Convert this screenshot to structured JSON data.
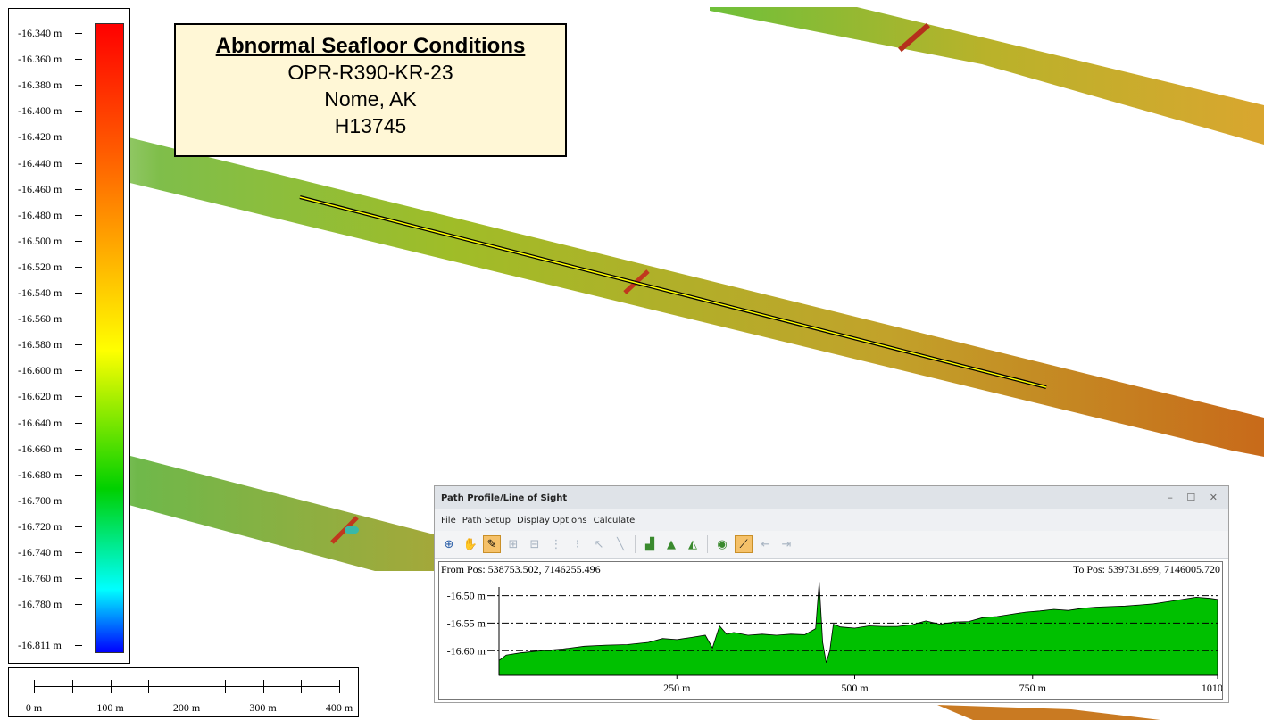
{
  "legend": {
    "ticks": [
      "-16.340 m",
      "-16.360 m",
      "-16.380 m",
      "-16.400 m",
      "-16.420 m",
      "-16.440 m",
      "-16.460 m",
      "-16.480 m",
      "-16.500 m",
      "-16.520 m",
      "-16.540 m",
      "-16.560 m",
      "-16.580 m",
      "-16.600 m",
      "-16.620 m",
      "-16.640 m",
      "-16.660 m",
      "-16.680 m",
      "-16.700 m",
      "-16.720 m",
      "-16.740 m",
      "-16.760 m",
      "-16.780 m",
      "-16.811 m"
    ],
    "colors": [
      "#ff0000",
      "#ff5a00",
      "#ffa600",
      "#ffff00",
      "#00d000",
      "#00ffff",
      "#0000ff"
    ]
  },
  "scale": {
    "labels": [
      "0 m",
      "100 m",
      "200 m",
      "300 m",
      "400 m"
    ]
  },
  "title": {
    "heading": "Abnormal Seafloor Conditions",
    "line1": "OPR-R390-KR-23",
    "line2": "Nome, AK",
    "line3": "H13745"
  },
  "panel": {
    "title": "Path Profile/Line of Sight",
    "controls": "– ☐ ✕",
    "menu": [
      "File",
      "Path Setup",
      "Display Options",
      "Calculate"
    ],
    "tools": [
      "zoom-in-icon",
      "pan-hand-icon",
      "draw-path-icon",
      "grid-select-icon",
      "grid-select-2-icon",
      "spacing-icon",
      "spacing-2-icon",
      "pointer-icon",
      "line-icon",
      "profile-chart-icon",
      "terrain-icon",
      "terrain-search-icon",
      "line-of-sight-eye-icon",
      "profile-highlight-icon",
      "move-left-icon",
      "move-right-icon"
    ],
    "from_pos": "From Pos: 538753.502, 7146255.496",
    "to_pos": "To Pos: 539731.699, 7146005.720",
    "fill_color": "#00c000"
  },
  "chart_data": {
    "type": "area",
    "xlabel": "",
    "ylabel": "",
    "y_ticks": [
      "-16.50 m",
      "-16.55 m",
      "-16.60 m"
    ],
    "x_ticks": [
      "250 m",
      "500 m",
      "750 m",
      "1010 m"
    ],
    "x_range": [
      0,
      1010
    ],
    "y_range": [
      -16.645,
      -16.465
    ],
    "series": [
      {
        "x": [
          0,
          10,
          30,
          60,
          90,
          120,
          150,
          180,
          210,
          230,
          250,
          270,
          290,
          300,
          310,
          320,
          330,
          350,
          370,
          390,
          410,
          430,
          445,
          450,
          455,
          460,
          465,
          470,
          480,
          500,
          520,
          540,
          560,
          580,
          600,
          620,
          640,
          660,
          680,
          700,
          720,
          740,
          760,
          780,
          800,
          820,
          840,
          860,
          880,
          900,
          920,
          940,
          960,
          980,
          1000,
          1010
        ],
        "y": [
          -16.618,
          -16.608,
          -16.604,
          -16.6,
          -16.597,
          -16.592,
          -16.59,
          -16.589,
          -16.585,
          -16.578,
          -16.58,
          -16.576,
          -16.572,
          -16.595,
          -16.555,
          -16.57,
          -16.567,
          -16.572,
          -16.57,
          -16.572,
          -16.57,
          -16.571,
          -16.56,
          -16.475,
          -16.585,
          -16.622,
          -16.6,
          -16.552,
          -16.557,
          -16.559,
          -16.555,
          -16.556,
          -16.556,
          -16.553,
          -16.546,
          -16.552,
          -16.548,
          -16.547,
          -16.54,
          -16.538,
          -16.534,
          -16.53,
          -16.528,
          -16.525,
          -16.527,
          -16.523,
          -16.521,
          -16.52,
          -16.519,
          -16.517,
          -16.515,
          -16.511,
          -16.507,
          -16.503,
          -16.505,
          -16.507
        ]
      }
    ]
  }
}
